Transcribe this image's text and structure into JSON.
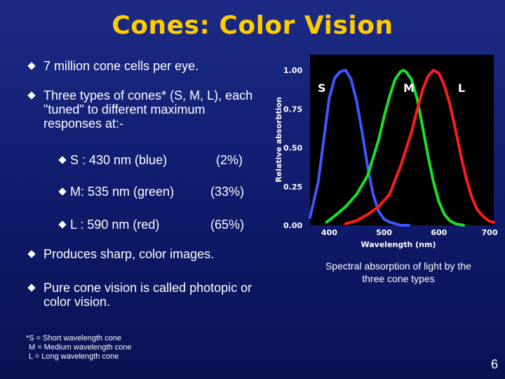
{
  "slide": {
    "title": "Cones: Color Vision",
    "bullets": [
      "7 million cone cells per eye.",
      "Three types of cones* (S, M, L), each \"tuned\" to different maximum responses at:-",
      "Produces sharp, color images.",
      "Pure cone vision is called photopic or color vision."
    ],
    "cone_types": [
      {
        "label": "S : 430 nm (blue)",
        "percent": "(2%)"
      },
      {
        "label": "M: 535 nm (green)",
        "percent": "(33%)"
      },
      {
        "label": "L : 590 nm (red)",
        "percent": "(65%)"
      }
    ],
    "footnote": [
      "*S = Short wavelength cone",
      "M = Medium wavelength cone",
      "L = Long wavelength cone"
    ],
    "caption": "Spectral absorption of light by the three cone types",
    "page_number": "6"
  },
  "colors": {
    "background": "#1a2880",
    "title": "#ffcc00",
    "S": "#3d57ff",
    "M": "#18e028",
    "L": "#ff1c1c"
  },
  "chart_data": {
    "type": "line",
    "xlabel": "Wavelength (nm)",
    "ylabel": "Relative absorbtion",
    "xlim": [
      365,
      700
    ],
    "ylim": [
      0,
      1
    ],
    "x_ticks": [
      "400",
      "500",
      "600",
      "700"
    ],
    "y_ticks": [
      "0.00",
      "0.25",
      "0.50",
      "0.75",
      "1.00"
    ],
    "grid": false,
    "series": [
      {
        "name": "S",
        "color": "#3d57ff",
        "x": [
          365,
          380,
          390,
          400,
          410,
          420,
          430,
          440,
          450,
          460,
          470,
          480,
          490,
          500,
          510,
          520,
          530,
          545
        ],
        "y": [
          0.05,
          0.28,
          0.55,
          0.82,
          0.95,
          0.99,
          1.0,
          0.94,
          0.8,
          0.6,
          0.38,
          0.2,
          0.09,
          0.04,
          0.02,
          0.01,
          0.0,
          0.0
        ]
      },
      {
        "name": "M",
        "color": "#18e028",
        "x": [
          395,
          410,
          430,
          450,
          470,
          490,
          500,
          510,
          520,
          530,
          535,
          540,
          550,
          560,
          570,
          580,
          590,
          600,
          610,
          620,
          630,
          645
        ],
        "y": [
          0.02,
          0.06,
          0.12,
          0.2,
          0.32,
          0.55,
          0.7,
          0.83,
          0.94,
          0.99,
          1.0,
          0.99,
          0.94,
          0.82,
          0.64,
          0.45,
          0.28,
          0.15,
          0.07,
          0.03,
          0.01,
          0.0
        ]
      },
      {
        "name": "L",
        "color": "#ff1c1c",
        "x": [
          430,
          450,
          470,
          490,
          510,
          530,
          550,
          560,
          570,
          580,
          590,
          600,
          610,
          620,
          630,
          640,
          650,
          660,
          670,
          680,
          690,
          700
        ],
        "y": [
          0.01,
          0.03,
          0.07,
          0.12,
          0.2,
          0.38,
          0.6,
          0.74,
          0.87,
          0.96,
          1.0,
          0.98,
          0.9,
          0.78,
          0.62,
          0.45,
          0.3,
          0.18,
          0.1,
          0.06,
          0.03,
          0.02
        ]
      }
    ]
  }
}
